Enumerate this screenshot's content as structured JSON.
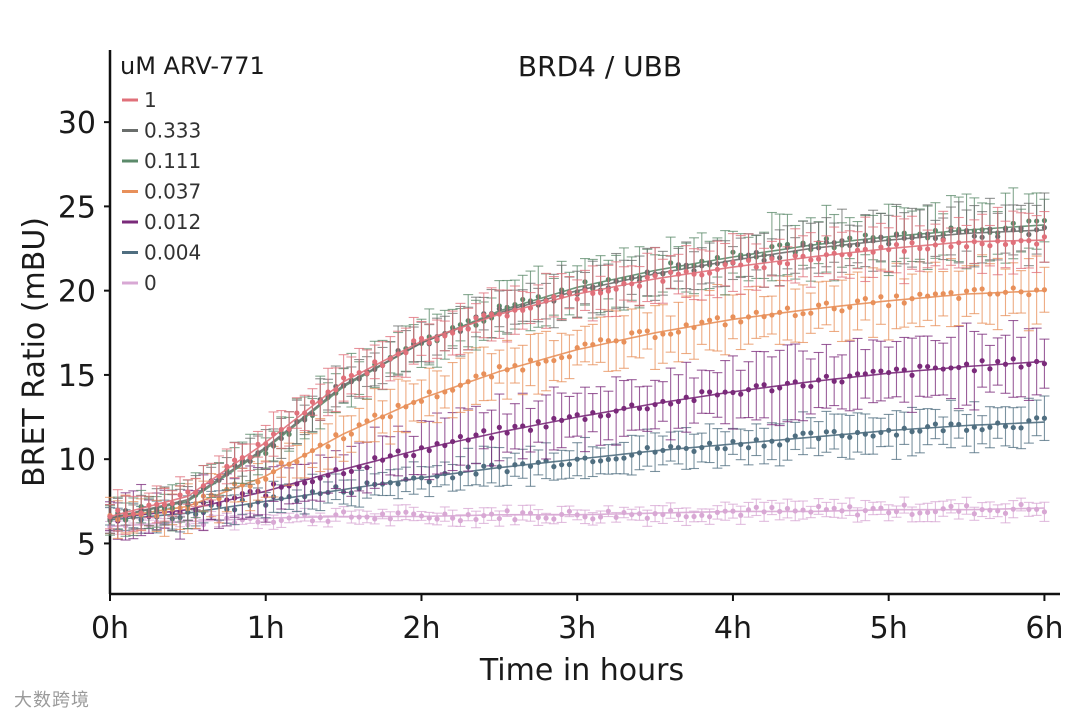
{
  "chart_data": {
    "type": "line",
    "title": "BRD4 / UBB",
    "xlabel": "Time in hours",
    "ylabel": "BRET Ratio (mBU)",
    "legend_title": "uM ARV-771",
    "legend_position": "top-left",
    "xlim": [
      0,
      6.1
    ],
    "ylim": [
      2,
      32.5
    ],
    "x_ticks": [
      {
        "value": 0,
        "label": "0h"
      },
      {
        "value": 1,
        "label": "1h"
      },
      {
        "value": 2,
        "label": "2h"
      },
      {
        "value": 3,
        "label": "3h"
      },
      {
        "value": 4,
        "label": "4h"
      },
      {
        "value": 5,
        "label": "5h"
      },
      {
        "value": 6,
        "label": "6h"
      }
    ],
    "y_ticks": [
      5,
      10,
      15,
      20,
      25,
      30
    ],
    "grid": false,
    "series": [
      {
        "name": "1",
        "color": "#e0707a",
        "x": [
          0,
          0.5,
          1,
          1.5,
          2,
          2.5,
          3,
          3.5,
          4,
          4.5,
          5,
          5.5,
          6
        ],
        "y": [
          6.6,
          7.8,
          11.0,
          14.6,
          17.0,
          18.6,
          19.8,
          20.7,
          21.4,
          22.0,
          22.5,
          22.9,
          23.0
        ],
        "err": 1.6
      },
      {
        "name": "0.333",
        "color": "#6a6e6c",
        "x": [
          0,
          0.5,
          1,
          1.5,
          2,
          2.5,
          3,
          3.5,
          4,
          4.5,
          5,
          5.5,
          6
        ],
        "y": [
          6.5,
          7.6,
          10.7,
          14.4,
          16.9,
          18.7,
          20.0,
          21.0,
          21.8,
          22.5,
          23.0,
          23.4,
          23.6
        ],
        "err": 1.6
      },
      {
        "name": "0.111",
        "color": "#5b8a6a",
        "x": [
          0,
          0.5,
          1,
          1.5,
          2,
          2.5,
          3,
          3.5,
          4,
          4.5,
          5,
          5.5,
          6
        ],
        "y": [
          6.5,
          7.5,
          10.6,
          14.3,
          16.9,
          18.8,
          20.2,
          21.2,
          22.0,
          22.7,
          23.2,
          23.6,
          23.9
        ],
        "err": 1.8
      },
      {
        "name": "0.037",
        "color": "#e8905a",
        "x": [
          0,
          0.5,
          1,
          1.5,
          2,
          2.5,
          3,
          3.5,
          4,
          4.5,
          5,
          5.5,
          6
        ],
        "y": [
          6.5,
          7.2,
          9.0,
          11.5,
          13.6,
          15.2,
          16.5,
          17.5,
          18.3,
          18.9,
          19.4,
          19.8,
          20.0
        ],
        "err": 1.8
      },
      {
        "name": "0.012",
        "color": "#7a2a7a",
        "x": [
          0,
          0.5,
          1,
          1.5,
          2,
          2.5,
          3,
          3.5,
          4,
          4.5,
          5,
          5.5,
          6
        ],
        "y": [
          6.5,
          7.0,
          8.1,
          9.4,
          10.6,
          11.6,
          12.5,
          13.3,
          14.0,
          14.6,
          15.1,
          15.5,
          15.8
        ],
        "err": 2.0
      },
      {
        "name": "0.004",
        "color": "#4f6e80",
        "x": [
          0,
          0.5,
          1,
          1.5,
          2,
          2.5,
          3,
          3.5,
          4,
          4.5,
          5,
          5.5,
          6
        ],
        "y": [
          6.4,
          6.8,
          7.5,
          8.2,
          8.9,
          9.5,
          10.0,
          10.5,
          10.9,
          11.3,
          11.7,
          12.0,
          12.2
        ],
        "err": 1.2
      },
      {
        "name": "0",
        "color": "#d8a8d4",
        "x": [
          0,
          0.5,
          1,
          1.5,
          2,
          2.5,
          3,
          3.5,
          4,
          4.5,
          5,
          5.5,
          6
        ],
        "y": [
          6.0,
          6.3,
          6.5,
          6.6,
          6.6,
          6.7,
          6.7,
          6.8,
          6.9,
          6.9,
          7.0,
          7.0,
          7.1
        ],
        "err": 0.5
      }
    ]
  },
  "watermark": "大数跨境"
}
